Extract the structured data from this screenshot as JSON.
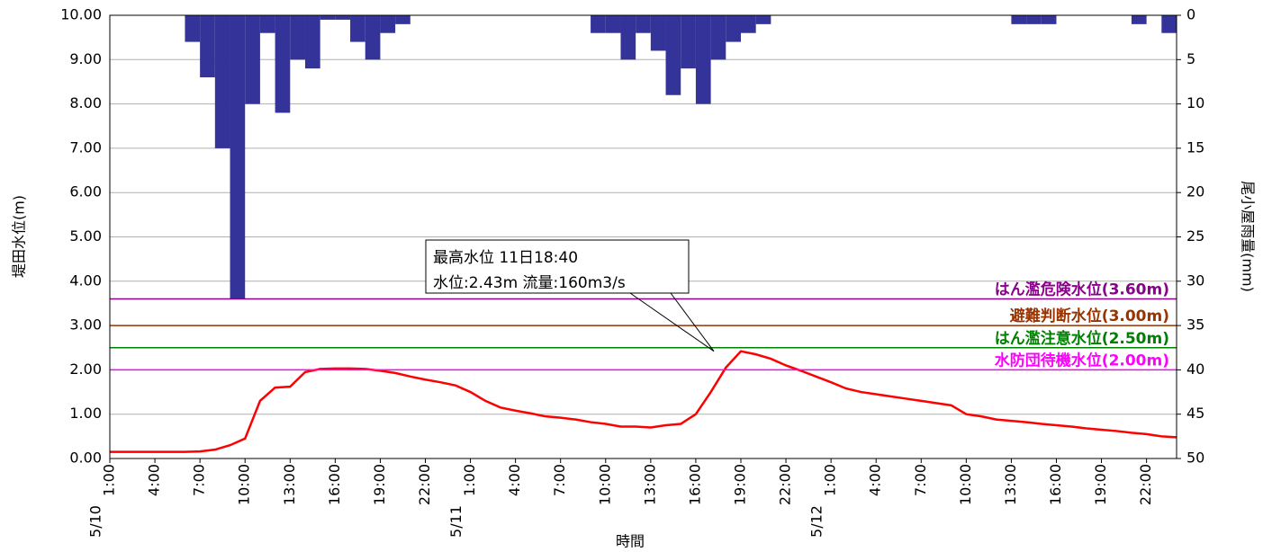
{
  "chart_data": {
    "type": "line",
    "x_label": "時間",
    "y_label": "堤田水位(m)",
    "y2_label": "尾小屋雨量(mm)",
    "categories": [
      "1:00",
      null,
      null,
      "4:00",
      null,
      null,
      "7:00",
      null,
      null,
      "10:00",
      null,
      null,
      "13:00",
      null,
      null,
      "16:00",
      null,
      null,
      "19:00",
      null,
      null,
      "22:00",
      null,
      null,
      "1:00",
      null,
      null,
      "4:00",
      null,
      null,
      "7:00",
      null,
      null,
      "10:00",
      null,
      null,
      "13:00",
      null,
      null,
      "16:00",
      null,
      null,
      "19:00",
      null,
      null,
      "22:00",
      null,
      null,
      "1:00",
      null,
      null,
      "4:00",
      null,
      null,
      "7:00",
      null,
      null,
      "10:00",
      null,
      null,
      "13:00",
      null,
      null,
      "16:00",
      null,
      null,
      "19:00",
      null,
      null,
      "22:00",
      null,
      null
    ],
    "category_dates": [
      "5/10",
      null,
      null,
      null,
      null,
      null,
      null,
      null,
      null,
      null,
      null,
      null,
      null,
      null,
      null,
      null,
      null,
      null,
      null,
      null,
      null,
      null,
      null,
      null,
      "5/11",
      null,
      null,
      null,
      null,
      null,
      null,
      null,
      null,
      null,
      null,
      null,
      null,
      null,
      null,
      null,
      null,
      null,
      null,
      null,
      null,
      null,
      null,
      null,
      "5/12",
      null,
      null,
      null,
      null,
      null,
      null,
      null,
      null,
      null,
      null,
      null,
      null,
      null,
      null,
      null,
      null,
      null,
      null,
      null,
      null,
      null,
      null,
      null
    ],
    "series": [
      {
        "type": "bar",
        "axis": "y2",
        "color": "#333399",
        "values": [
          0,
          0,
          0,
          0,
          0,
          0,
          3,
          7,
          15,
          32,
          10,
          2,
          11,
          5,
          6,
          0.5,
          0.5,
          3,
          5,
          2,
          1,
          0,
          0,
          0,
          0,
          0,
          0,
          0,
          0,
          0,
          0,
          0,
          0,
          2,
          2,
          5,
          2,
          4,
          9,
          6,
          10,
          5,
          3,
          2,
          1,
          0,
          0,
          0,
          0,
          0,
          0,
          0,
          0,
          0,
          0,
          0,
          0,
          0,
          0,
          0,
          0,
          1,
          1,
          1,
          0,
          0,
          0,
          0,
          0,
          1,
          0,
          2
        ]
      },
      {
        "type": "line",
        "axis": "y",
        "color": "#ff0000",
        "values": [
          0.15,
          0.15,
          0.15,
          0.15,
          0.15,
          0.15,
          0.16,
          0.2,
          0.3,
          0.45,
          1.3,
          1.6,
          1.62,
          1.95,
          2.02,
          2.03,
          2.03,
          2.02,
          1.98,
          1.93,
          1.85,
          1.78,
          1.72,
          1.65,
          1.5,
          1.3,
          1.15,
          1.08,
          1.02,
          0.95,
          0.92,
          0.88,
          0.82,
          0.78,
          0.72,
          0.72,
          0.7,
          0.75,
          0.78,
          1.0,
          1.5,
          2.05,
          2.42,
          2.35,
          2.25,
          2.1,
          1.98,
          1.85,
          1.72,
          1.58,
          1.5,
          1.45,
          1.4,
          1.35,
          1.3,
          1.25,
          1.2,
          1.0,
          0.95,
          0.88,
          0.85,
          0.82,
          0.78,
          0.75,
          0.72,
          0.68,
          0.65,
          0.62,
          0.58,
          0.55,
          0.5,
          0.48
        ]
      }
    ],
    "thresholds": [
      {
        "value": 3.6,
        "label": "はん濫危険水位(3.60m)",
        "color": "#8b008b"
      },
      {
        "value": 3.0,
        "label": "避難判断水位(3.00m)",
        "color": "#993300"
      },
      {
        "value": 2.5,
        "label": "はん濫注意水位(2.50m)",
        "color": "#008000"
      },
      {
        "value": 2.0,
        "label": "水防団待機水位(2.00m)",
        "color": "#ff00ff"
      }
    ],
    "annotation": {
      "lines": [
        "最高水位  11日18:40",
        "水位:2.43m  流量:160m3/s"
      ]
    },
    "ylim": [
      0,
      10
    ],
    "yticks": [
      {
        "value": 0,
        "label": "0.00"
      },
      {
        "value": 1,
        "label": "1.00"
      },
      {
        "value": 2,
        "label": "2.00"
      },
      {
        "value": 3,
        "label": "3.00"
      },
      {
        "value": 4,
        "label": "4.00"
      },
      {
        "value": 5,
        "label": "5.00"
      },
      {
        "value": 6,
        "label": "6.00"
      },
      {
        "value": 7,
        "label": "7.00"
      },
      {
        "value": 8,
        "label": "8.00"
      },
      {
        "value": 9,
        "label": "9.00"
      },
      {
        "value": 10,
        "label": "10.00"
      }
    ],
    "y2lim": [
      0,
      50
    ],
    "y2_inverted": true,
    "y2ticks": [
      0,
      5,
      10,
      15,
      20,
      25,
      30,
      35,
      40,
      45,
      50
    ],
    "grid": true
  }
}
